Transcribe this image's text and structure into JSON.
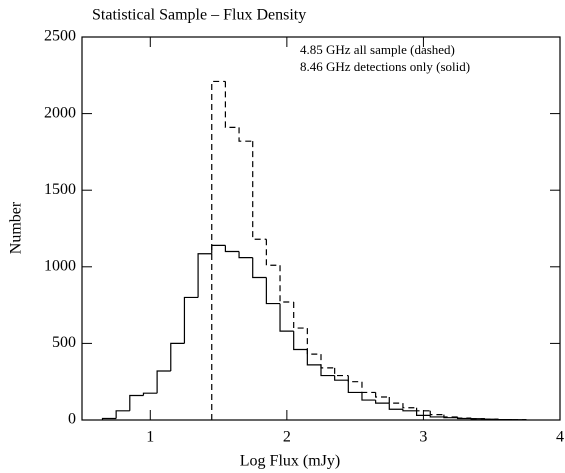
{
  "chart_data": {
    "type": "histogram",
    "title": "Statistical Sample – Flux Density",
    "x_label": "Log Flux (mJy)",
    "y_label": "Number",
    "bins": [
      0.65,
      0.75,
      0.85,
      0.95,
      1.05,
      1.15,
      1.25,
      1.35,
      1.45,
      1.55,
      1.65,
      1.75,
      1.85,
      1.95,
      2.05,
      2.15,
      2.25,
      2.35,
      2.45,
      2.55,
      2.65,
      2.75,
      2.85,
      2.95,
      3.05,
      3.15,
      3.25,
      3.35,
      3.45,
      3.55,
      3.65,
      3.75
    ],
    "series": [
      {
        "name": "4.85 GHz all sample (dashed)",
        "color": "#000000",
        "dash": true,
        "values": [
          null,
          null,
          null,
          null,
          null,
          null,
          null,
          null,
          2210,
          1910,
          1820,
          1180,
          1010,
          770,
          600,
          430,
          340,
          290,
          250,
          180,
          150,
          110,
          80,
          60,
          35,
          20,
          12,
          8,
          5,
          3,
          2
        ]
      },
      {
        "name": "8.46 GHz detections only (solid)",
        "color": "#000000",
        "dash": false,
        "values": [
          10,
          60,
          160,
          175,
          320,
          500,
          800,
          1085,
          1140,
          1100,
          1060,
          930,
          760,
          580,
          460,
          360,
          290,
          260,
          180,
          130,
          110,
          70,
          60,
          30,
          20,
          15,
          10,
          8,
          5,
          3,
          2
        ]
      }
    ],
    "xlim": [
      0.5,
      4
    ],
    "ylim": [
      0,
      2500
    ],
    "xticks": [
      1,
      2,
      3,
      4
    ],
    "yticks": [
      0,
      500,
      1000,
      1500,
      2000,
      2500
    ]
  }
}
